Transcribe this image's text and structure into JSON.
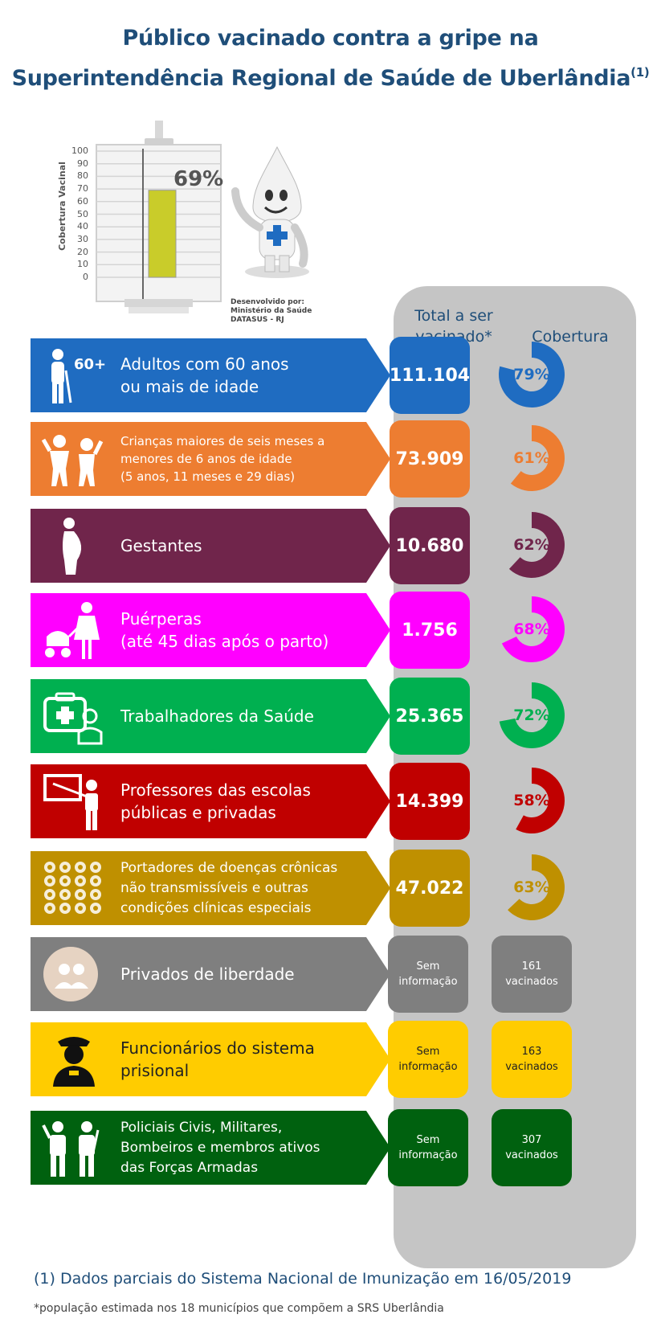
{
  "title": {
    "line1": "Público vacinado contra a gripe na",
    "line2": "Superintendência Regional de Saúde de Uberlândia",
    "note_marker": "(1)"
  },
  "thermometer": {
    "percent_label": "69%",
    "value": 69,
    "axis_title": "Cobertura Vacinal",
    "ticks": [
      "100",
      "90",
      "80",
      "70",
      "60",
      "50",
      "40",
      "30",
      "20",
      "10",
      "0"
    ],
    "credit": "Desenvolvido por:\nMinistério da Saúde\nDATASUS - RJ",
    "fill_color": "#c9cc2a"
  },
  "columns": {
    "total": "Total a ser\nvacinado*",
    "coverage": "Cobertura"
  },
  "groups": [
    {
      "label": "Adultos com 60 anos\nou mais de idade",
      "icon": "elderly-60-icon",
      "color": "#1f6cc1",
      "total": "111.104",
      "coverage_label": "79%",
      "coverage": 79,
      "size": "normal"
    },
    {
      "label": "Crianças maiores de seis meses a\nmenores de 6 anos de idade\n(5 anos, 11 meses e 29 dias)",
      "icon": "children-icon",
      "color": "#ed7d31",
      "total": "73.909",
      "coverage_label": "61%",
      "coverage": 61,
      "size": "small"
    },
    {
      "label": "Gestantes",
      "icon": "pregnant-icon",
      "color": "#70254b",
      "total": "10.680",
      "coverage_label": "62%",
      "coverage": 62,
      "size": "normal"
    },
    {
      "label": "Puérperas\n(até 45 dias após o parto)",
      "icon": "mother-stroller-icon",
      "color": "#ff00ff",
      "total": "1.756",
      "coverage_label": "68%",
      "coverage": 68,
      "size": "normal"
    },
    {
      "label": "Trabalhadores da Saúde",
      "icon": "health-worker-icon",
      "color": "#00b050",
      "total": "25.365",
      "coverage_label": "72%",
      "coverage": 72,
      "size": "normal"
    },
    {
      "label": "Professores das escolas\npúblicas e privadas",
      "icon": "teacher-icon",
      "color": "#c00000",
      "total": "14.399",
      "coverage_label": "58%",
      "coverage": 58,
      "size": "normal"
    },
    {
      "label": "Portadores de doenças crônicas\nnão transmissíveis e outras\ncondições clínicas especiais",
      "icon": "chronic-conditions-icon",
      "color": "#bf9000",
      "total": "47.022",
      "coverage_label": "63%",
      "coverage": 63,
      "size": "mid"
    },
    {
      "label": "Privados de liberdade",
      "icon": "prisoners-icon",
      "color": "#7f7f7f",
      "total": "Sem\ninformação",
      "coverage_label": "161\nvacinados",
      "size": "normal"
    },
    {
      "label": "Funcionários do sistema\nprisional",
      "icon": "prison-officer-icon",
      "color": "#ffcc00",
      "text_color": "#222222",
      "total": "Sem\ninformação",
      "coverage_label": "163\nvacinados",
      "size": "normal"
    },
    {
      "label": "Policiais Civis, Militares,\nBombeiros e membros ativos\ndas Forças Armadas",
      "icon": "police-military-icon",
      "color": "#00610f",
      "total": "Sem\ninformação",
      "coverage_label": "307\nvacinados",
      "size": "mid"
    }
  ],
  "footnotes": {
    "note1": "(1) Dados parciais do Sistema Nacional de Imunização em 16/05/2019",
    "note2": "*população estimada nos 18 municípios que compõem a SRS Uberlândia"
  }
}
